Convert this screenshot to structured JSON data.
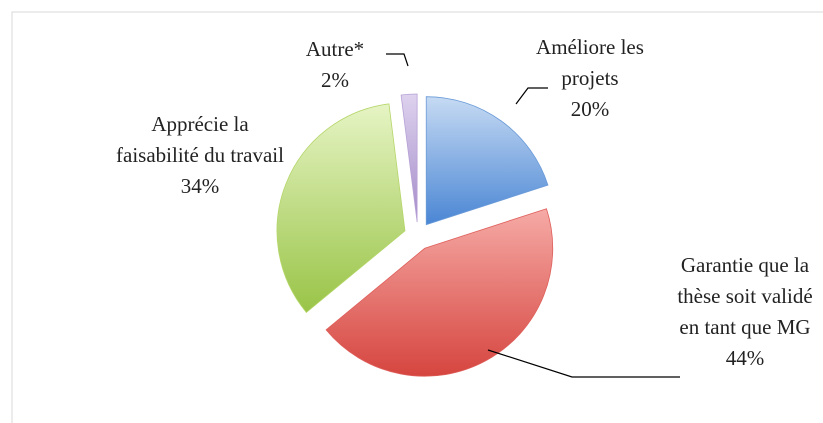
{
  "chart_data": {
    "type": "pie",
    "categories": [
      "Améliore les projets",
      "Garantie que la thèse soit validé en tant que MG",
      "Apprécie la faisabilité du travail",
      "Autre*"
    ],
    "values": [
      20,
      44,
      34,
      2
    ],
    "value_labels": [
      "20%",
      "44%",
      "34%",
      "2%"
    ],
    "colors": [
      "#6b9bd8",
      "#de5f5b",
      "#b5d66a",
      "#b7a1d5"
    ]
  }
}
